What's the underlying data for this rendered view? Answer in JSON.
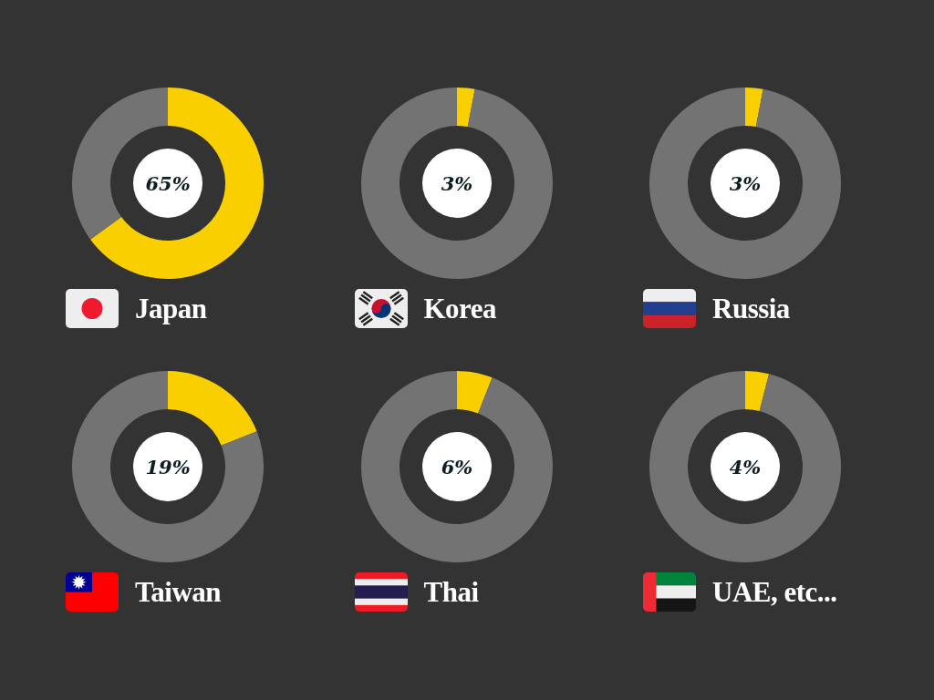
{
  "chart_data": [
    {
      "type": "donut",
      "title": "Japan",
      "categories": [
        null,
        null
      ],
      "values": [
        65,
        35
      ],
      "colors": [
        "#f9cf00",
        "#737373"
      ],
      "annotations": [
        "65%"
      ]
    },
    {
      "type": "donut",
      "title": "Korea",
      "categories": [
        null,
        null
      ],
      "values": [
        3,
        97
      ],
      "colors": [
        "#f9cf00",
        "#737373"
      ],
      "annotations": [
        "3%"
      ]
    },
    {
      "type": "donut",
      "title": "Russia",
      "categories": [
        null,
        null
      ],
      "values": [
        3,
        97
      ],
      "colors": [
        "#f9cf00",
        "#737373"
      ],
      "annotations": [
        "3%"
      ]
    },
    {
      "type": "donut",
      "title": "Taiwan",
      "categories": [
        null,
        null
      ],
      "values": [
        19,
        81
      ],
      "colors": [
        "#f9cf00",
        "#737373"
      ],
      "annotations": [
        "19%"
      ]
    },
    {
      "type": "donut",
      "title": "Thai",
      "categories": [
        null,
        null
      ],
      "values": [
        6,
        94
      ],
      "colors": [
        "#f9cf00",
        "#737373"
      ],
      "annotations": [
        "6%"
      ]
    },
    {
      "type": "donut",
      "title": "UAE, etc...",
      "categories": [
        null,
        null
      ],
      "values": [
        4,
        96
      ],
      "colors": [
        "#f9cf00",
        "#737373"
      ],
      "annotations": [
        "4%"
      ]
    }
  ]
}
